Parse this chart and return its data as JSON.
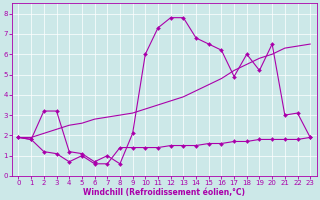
{
  "xlabel": "Windchill (Refroidissement éolien,°C)",
  "xlim": [
    -0.5,
    23.5
  ],
  "ylim": [
    0,
    8.5
  ],
  "xticks": [
    0,
    1,
    2,
    3,
    4,
    5,
    6,
    7,
    8,
    9,
    10,
    11,
    12,
    13,
    14,
    15,
    16,
    17,
    18,
    19,
    20,
    21,
    22,
    23
  ],
  "yticks": [
    0,
    1,
    2,
    3,
    4,
    5,
    6,
    7,
    8
  ],
  "bg_color": "#cce8e8",
  "line_color": "#aa00aa",
  "grid_color": "#ffffff",
  "line1_x": [
    0,
    1,
    2,
    3,
    4,
    5,
    6,
    7,
    8,
    9,
    10,
    11,
    12,
    13,
    14,
    15,
    16,
    17,
    18,
    19,
    20,
    21,
    22,
    23
  ],
  "line1_y": [
    1.9,
    1.8,
    3.2,
    3.2,
    1.2,
    1.1,
    0.7,
    1.0,
    0.6,
    2.1,
    6.0,
    7.3,
    7.8,
    7.8,
    6.8,
    6.5,
    6.2,
    4.9,
    6.0,
    5.2,
    6.5,
    3.0,
    3.1,
    1.9
  ],
  "line2_x": [
    0,
    1,
    2,
    3,
    4,
    5,
    6,
    7,
    8,
    9,
    10,
    11,
    12,
    13,
    14,
    15,
    16,
    17,
    18,
    19,
    20,
    21,
    22,
    23
  ],
  "line2_y": [
    1.9,
    1.9,
    2.1,
    2.3,
    2.5,
    2.6,
    2.8,
    2.9,
    3.0,
    3.1,
    3.3,
    3.5,
    3.7,
    3.9,
    4.2,
    4.5,
    4.8,
    5.2,
    5.5,
    5.8,
    6.0,
    6.3,
    6.4,
    6.5
  ],
  "line3_x": [
    0,
    1,
    2,
    3,
    4,
    5,
    6,
    7,
    8,
    9,
    10,
    11,
    12,
    13,
    14,
    15,
    16,
    17,
    18,
    19,
    20,
    21,
    22,
    23
  ],
  "line3_y": [
    1.9,
    1.8,
    1.2,
    1.1,
    0.7,
    1.0,
    0.6,
    0.6,
    1.4,
    1.4,
    1.4,
    1.4,
    1.5,
    1.5,
    1.5,
    1.6,
    1.6,
    1.7,
    1.7,
    1.8,
    1.8,
    1.8,
    1.8,
    1.9
  ],
  "xlabel_fontsize": 5.5,
  "tick_fontsize": 5.0
}
